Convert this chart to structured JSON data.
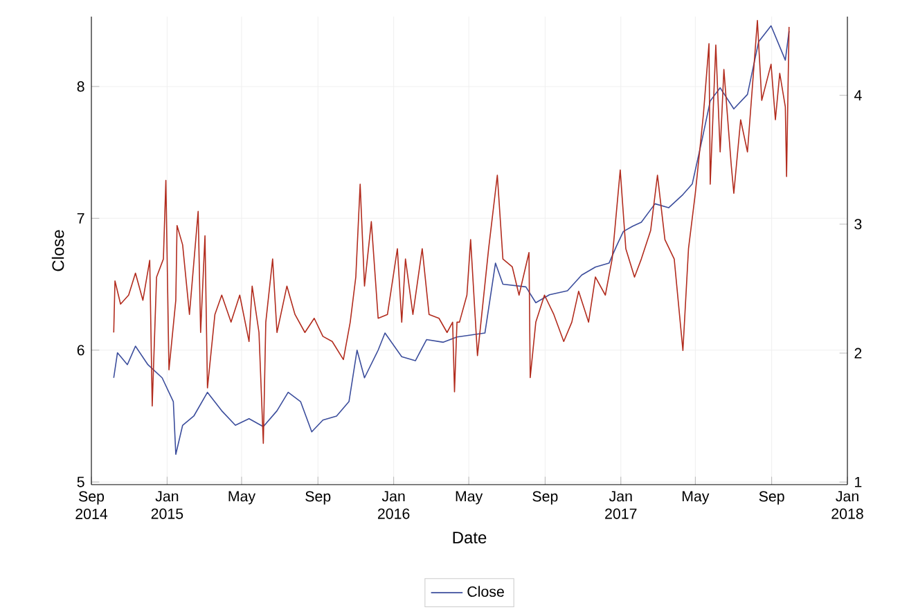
{
  "chart_data": {
    "type": "line",
    "xlabel": "Date",
    "ylabel": "Close",
    "xlim": [
      "2014-09-01",
      "2018-01-01"
    ],
    "xticks": [
      {
        "value": "2014-09-01",
        "label": "Sep 2014"
      },
      {
        "value": "2015-01-01",
        "label": "Jan 2015"
      },
      {
        "value": "2015-05-01",
        "label": "May"
      },
      {
        "value": "2015-09-01",
        "label": "Sep"
      },
      {
        "value": "2016-01-01",
        "label": "Jan 2016"
      },
      {
        "value": "2016-05-01",
        "label": "May"
      },
      {
        "value": "2016-09-01",
        "label": "Sep"
      },
      {
        "value": "2017-01-01",
        "label": "Jan 2017"
      },
      {
        "value": "2017-05-01",
        "label": "May"
      },
      {
        "value": "2017-09-01",
        "label": "Sep"
      },
      {
        "value": "2018-01-01",
        "label": "Jan 2018"
      }
    ],
    "ylim": [
      4.98,
      8.53
    ],
    "yticks": [
      5,
      6,
      7,
      8
    ],
    "y2lim": [
      0.98,
      4.61
    ],
    "y2ticks": [
      1,
      2,
      3,
      4
    ],
    "grid": true,
    "legend": "bottom",
    "series": [
      {
        "name": "Close",
        "color": "#3b4d9c",
        "x": [
          "2014-10-07",
          "2014-10-13",
          "2014-10-29",
          "2014-11-11",
          "2014-12-01",
          "2014-12-24",
          "2015-01-11",
          "2015-01-15",
          "2015-01-26",
          "2015-02-13",
          "2015-03-07",
          "2015-03-30",
          "2015-04-21",
          "2015-05-13",
          "2015-06-05",
          "2015-06-27",
          "2015-07-15",
          "2015-08-04",
          "2015-08-22",
          "2015-09-09",
          "2015-10-01",
          "2015-10-21",
          "2015-11-03",
          "2015-11-15",
          "2015-12-07",
          "2015-12-18",
          "2016-01-14",
          "2016-02-05",
          "2016-02-23",
          "2016-03-21",
          "2016-04-12",
          "2016-04-28",
          "2016-05-27",
          "2016-06-13",
          "2016-06-25",
          "2016-08-01",
          "2016-08-17",
          "2016-09-08",
          "2016-10-07",
          "2016-10-30",
          "2016-11-21",
          "2016-12-13",
          "2016-12-25",
          "2017-01-05",
          "2017-01-20",
          "2017-02-03",
          "2017-02-25",
          "2017-03-19",
          "2017-04-11",
          "2017-04-26",
          "2017-05-12",
          "2017-05-25",
          "2017-06-10",
          "2017-07-02",
          "2017-07-24",
          "2017-08-11",
          "2017-08-31",
          "2017-09-23",
          "2017-09-29"
        ],
        "values": [
          5.79,
          5.98,
          5.89,
          6.03,
          5.89,
          5.79,
          5.61,
          5.21,
          5.43,
          5.5,
          5.68,
          5.54,
          5.43,
          5.48,
          5.42,
          5.54,
          5.68,
          5.61,
          5.38,
          5.47,
          5.5,
          5.61,
          6.0,
          5.79,
          6.0,
          6.13,
          5.95,
          5.92,
          6.08,
          6.06,
          6.1,
          6.11,
          6.13,
          6.66,
          6.5,
          6.48,
          6.36,
          6.42,
          6.45,
          6.57,
          6.63,
          6.66,
          6.79,
          6.9,
          6.94,
          6.97,
          7.11,
          7.08,
          7.18,
          7.26,
          7.6,
          7.89,
          7.99,
          7.83,
          7.94,
          8.34,
          8.46,
          8.2,
          8.42
        ]
      },
      {
        "axis": "y2",
        "color": "#b22c1e",
        "x": [
          "2014-10-07",
          "2014-10-09",
          "2014-10-18",
          "2014-10-31",
          "2014-11-11",
          "2014-11-23",
          "2014-12-04",
          "2014-12-08",
          "2014-12-15",
          "2014-12-26",
          "2014-12-30",
          "2015-01-04",
          "2015-01-15",
          "2015-01-17",
          "2015-01-26",
          "2015-02-06",
          "2015-02-20",
          "2015-02-24",
          "2015-03-03",
          "2015-03-07",
          "2015-03-19",
          "2015-03-30",
          "2015-04-14",
          "2015-04-28",
          "2015-05-13",
          "2015-05-18",
          "2015-05-29",
          "2015-06-05",
          "2015-06-09",
          "2015-06-20",
          "2015-06-27",
          "2015-07-13",
          "2015-07-26",
          "2015-08-11",
          "2015-08-26",
          "2015-09-09",
          "2015-09-24",
          "2015-10-12",
          "2015-10-23",
          "2015-11-01",
          "2015-11-08",
          "2015-11-15",
          "2015-11-26",
          "2015-12-07",
          "2015-12-22",
          "2016-01-07",
          "2016-01-14",
          "2016-01-20",
          "2016-02-01",
          "2016-02-16",
          "2016-02-27",
          "2016-03-14",
          "2016-03-27",
          "2016-04-05",
          "2016-04-08",
          "2016-04-12",
          "2016-04-16",
          "2016-04-28",
          "2016-05-04",
          "2016-05-15",
          "2016-06-02",
          "2016-06-16",
          "2016-06-25",
          "2016-07-10",
          "2016-07-21",
          "2016-08-06",
          "2016-08-08",
          "2016-08-17",
          "2016-08-31",
          "2016-09-15",
          "2016-10-01",
          "2016-10-14",
          "2016-10-25",
          "2016-11-10",
          "2016-11-21",
          "2016-12-07",
          "2016-12-18",
          "2016-12-31",
          "2017-01-09",
          "2017-01-23",
          "2017-02-03",
          "2017-02-18",
          "2017-03-01",
          "2017-03-13",
          "2017-03-28",
          "2017-04-11",
          "2017-04-20",
          "2017-05-01",
          "2017-05-14",
          "2017-05-23",
          "2017-05-25",
          "2017-06-03",
          "2017-06-10",
          "2017-06-16",
          "2017-06-28",
          "2017-07-02",
          "2017-07-13",
          "2017-07-24",
          "2017-08-09",
          "2017-08-16",
          "2017-08-31",
          "2017-09-07",
          "2017-09-14",
          "2017-09-23",
          "2017-09-25",
          "2017-09-29"
        ],
        "values": [
          2.16,
          2.56,
          2.38,
          2.45,
          2.62,
          2.41,
          2.72,
          1.59,
          2.59,
          2.73,
          3.34,
          1.87,
          2.41,
          2.99,
          2.84,
          2.3,
          3.1,
          2.16,
          2.91,
          1.73,
          2.3,
          2.45,
          2.24,
          2.45,
          2.09,
          2.52,
          2.16,
          1.3,
          2.24,
          2.73,
          2.16,
          2.52,
          2.3,
          2.16,
          2.27,
          2.13,
          2.09,
          1.95,
          2.24,
          2.59,
          3.31,
          2.52,
          3.02,
          2.27,
          2.3,
          2.81,
          2.24,
          2.73,
          2.3,
          2.81,
          2.3,
          2.27,
          2.16,
          2.24,
          1.7,
          2.24,
          2.24,
          2.45,
          2.88,
          1.98,
          2.81,
          3.38,
          2.73,
          2.67,
          2.45,
          2.78,
          1.81,
          2.24,
          2.45,
          2.3,
          2.09,
          2.24,
          2.48,
          2.24,
          2.59,
          2.45,
          2.73,
          3.42,
          2.81,
          2.59,
          2.73,
          2.95,
          3.38,
          2.88,
          2.73,
          2.02,
          2.81,
          3.24,
          3.85,
          4.4,
          3.31,
          4.39,
          3.56,
          4.2,
          3.45,
          3.24,
          3.81,
          3.56,
          4.58,
          3.96,
          4.24,
          3.81,
          4.17,
          3.91,
          3.37,
          4.53
        ]
      }
    ]
  }
}
